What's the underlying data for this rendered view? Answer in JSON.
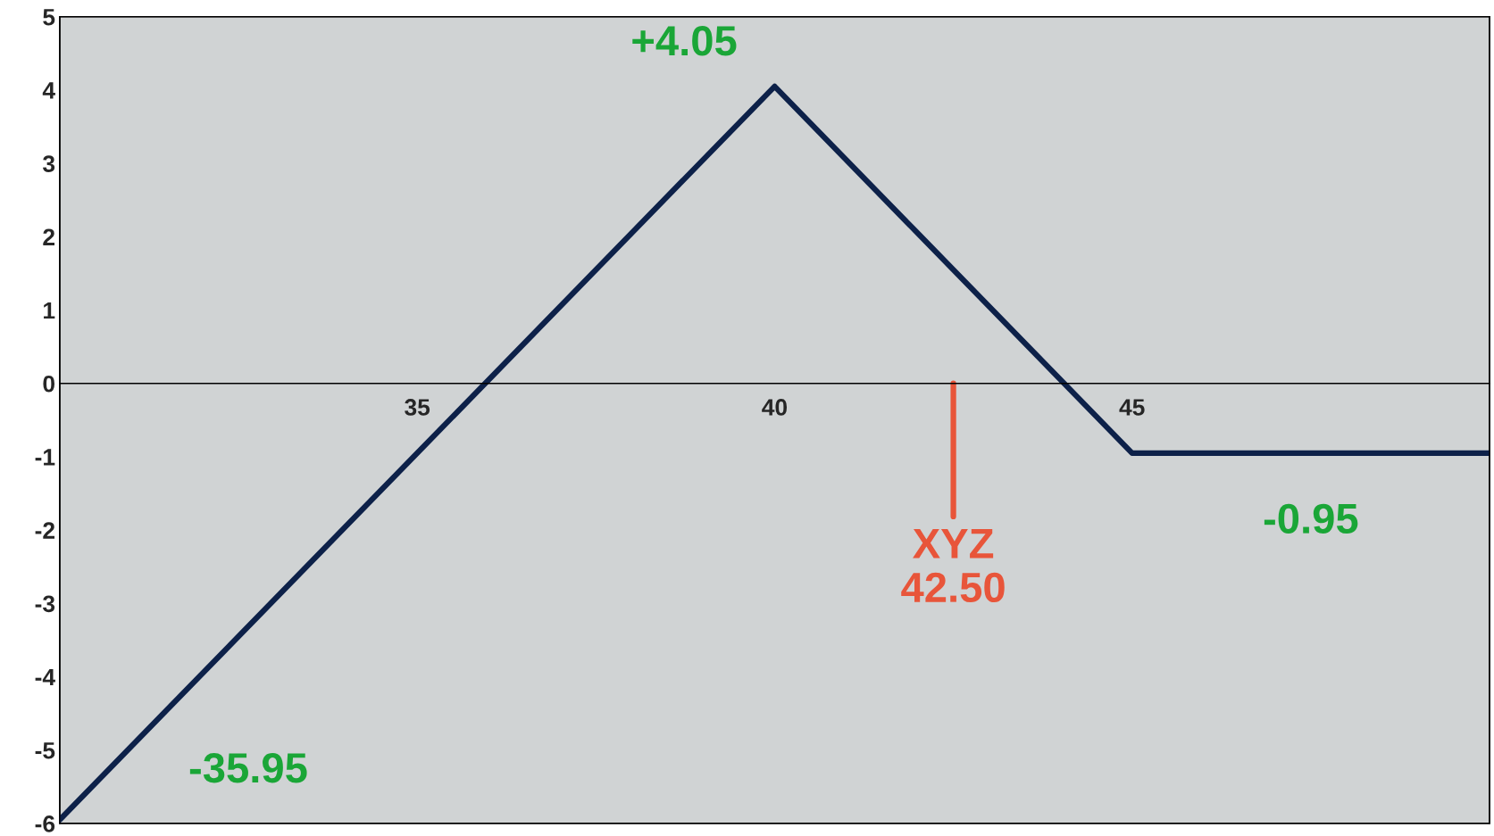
{
  "chart_data": {
    "type": "line",
    "x": [
      30,
      40,
      45,
      50
    ],
    "series": [
      {
        "color": "#0d2149",
        "values": [
          -5.95,
          4.05,
          -0.95,
          -0.95
        ]
      }
    ],
    "xlim": [
      30,
      50
    ],
    "xticks": [
      35,
      40,
      45
    ],
    "ylim": [
      -6,
      5
    ],
    "yticks": [
      -6,
      -5,
      -4,
      -3,
      -2,
      -1,
      0,
      1,
      2,
      3,
      4,
      5
    ],
    "grid": false,
    "legend": false,
    "marker": "none",
    "line_style": "solid",
    "ref_lines": [
      {
        "axis": "x",
        "value": 42.5,
        "label": "XYZ\n42.50",
        "color": "#e8553a"
      }
    ],
    "annotations": [
      {
        "text": "+4.05",
        "x": 40,
        "y": 4.05
      },
      {
        "text": "-0.95",
        "x": 47.5,
        "y": -0.95
      },
      "-35.95"
    ]
  }
}
